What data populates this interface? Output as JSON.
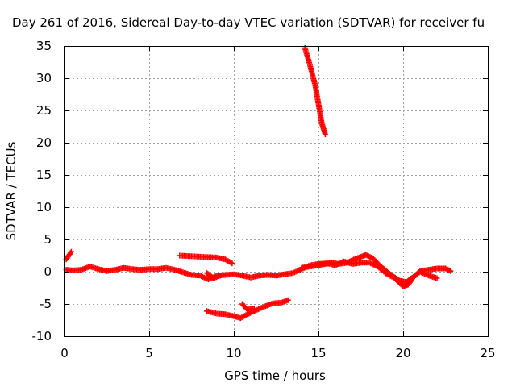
{
  "chart_data": {
    "type": "scatter",
    "title": "Day 261 of 2016, Sidereal Day-to-day VTEC variation (SDTVAR) for receiver fu",
    "xlabel": "GPS time / hours",
    "ylabel": "SDTVAR / TECUs",
    "xlim": [
      0,
      25
    ],
    "ylim": [
      -10,
      35
    ],
    "x_ticks": [
      0,
      5,
      10,
      15,
      20,
      25
    ],
    "y_ticks": [
      -10,
      -5,
      0,
      5,
      10,
      15,
      20,
      25,
      30,
      35
    ],
    "grid": true,
    "marker": "plus",
    "series": [
      {
        "color": "#ff0000",
        "tracks": [
          [
            [
              0.1,
              1.9
            ],
            [
              0.3,
              2.7
            ],
            [
              0.4,
              3.1
            ]
          ],
          [
            [
              0.1,
              0.3
            ],
            [
              0.5,
              0.2
            ],
            [
              1.0,
              0.3
            ],
            [
              1.5,
              0.8
            ],
            [
              2.0,
              0.4
            ],
            [
              2.5,
              0.1
            ],
            [
              3.0,
              0.3
            ],
            [
              3.5,
              0.6
            ],
            [
              4.0,
              0.4
            ],
            [
              4.5,
              0.3
            ],
            [
              5.0,
              0.4
            ],
            [
              5.5,
              0.4
            ],
            [
              6.0,
              0.6
            ],
            [
              6.5,
              0.3
            ],
            [
              7.0,
              -0.1
            ],
            [
              7.5,
              -0.5
            ],
            [
              8.0,
              -0.6
            ],
            [
              8.5,
              -1.2
            ],
            [
              9.0,
              -0.6
            ],
            [
              9.5,
              -0.5
            ],
            [
              10.0,
              -0.4
            ],
            [
              10.5,
              -0.6
            ],
            [
              11.0,
              -0.9
            ],
            [
              11.5,
              -0.6
            ],
            [
              12.0,
              -0.5
            ],
            [
              12.5,
              -0.6
            ],
            [
              13.0,
              -0.4
            ],
            [
              13.5,
              -0.2
            ],
            [
              14.0,
              0.4
            ],
            [
              14.5,
              1.0
            ],
            [
              15.0,
              1.2
            ],
            [
              15.5,
              1.3
            ],
            [
              16.0,
              1.0
            ],
            [
              16.5,
              1.6
            ],
            [
              17.0,
              1.2
            ],
            [
              17.5,
              1.4
            ],
            [
              18.0,
              1.4
            ],
            [
              18.5,
              0.8
            ],
            [
              19.0,
              -0.3
            ],
            [
              19.5,
              -1.0
            ],
            [
              20.0,
              -2.3
            ],
            [
              20.3,
              -2.0
            ],
            [
              20.6,
              -0.9
            ],
            [
              21.0,
              0.1
            ],
            [
              21.5,
              0.3
            ],
            [
              22.0,
              0.5
            ],
            [
              22.5,
              0.5
            ],
            [
              22.8,
              0.1
            ]
          ],
          [
            [
              8.4,
              -0.2
            ],
            [
              8.8,
              -1.0
            ],
            [
              9.2,
              -0.6
            ]
          ],
          [
            [
              14.0,
              0.6
            ],
            [
              14.5,
              0.8
            ],
            [
              15.0,
              1.0
            ],
            [
              15.4,
              1.2
            ],
            [
              15.8,
              1.4
            ],
            [
              16.2,
              1.2
            ],
            [
              16.7,
              1.4
            ],
            [
              17.0,
              1.8
            ],
            [
              17.5,
              2.3
            ],
            [
              17.8,
              2.6
            ],
            [
              18.2,
              2.1
            ],
            [
              18.6,
              1.0
            ],
            [
              19.0,
              0.1
            ],
            [
              19.4,
              -0.7
            ],
            [
              19.8,
              -1.4
            ],
            [
              20.2,
              -1.6
            ],
            [
              20.6,
              -0.8
            ],
            [
              21.0,
              0.0
            ],
            [
              21.5,
              -0.6
            ],
            [
              22.0,
              -1.0
            ]
          ],
          [
            [
              6.8,
              2.5
            ],
            [
              7.5,
              2.4
            ],
            [
              8.2,
              2.3
            ],
            [
              9.0,
              2.2
            ],
            [
              9.5,
              1.9
            ],
            [
              9.9,
              1.3
            ]
          ],
          [
            [
              8.4,
              -6.1
            ],
            [
              9.0,
              -6.5
            ],
            [
              9.5,
              -6.6
            ],
            [
              10.0,
              -6.9
            ],
            [
              10.4,
              -7.2
            ],
            [
              10.8,
              -6.6
            ],
            [
              11.3,
              -6.0
            ],
            [
              11.8,
              -5.4
            ],
            [
              12.3,
              -4.9
            ],
            [
              12.8,
              -4.8
            ],
            [
              13.2,
              -4.4
            ]
          ],
          [
            [
              10.5,
              -5.0
            ],
            [
              10.8,
              -5.9
            ],
            [
              11.2,
              -5.7
            ]
          ],
          [
            [
              14.2,
              34.7
            ],
            [
              14.5,
              32.0
            ],
            [
              14.8,
              29.0
            ],
            [
              15.0,
              26.0
            ],
            [
              15.2,
              23.0
            ],
            [
              15.4,
              21.3
            ]
          ]
        ]
      }
    ]
  }
}
